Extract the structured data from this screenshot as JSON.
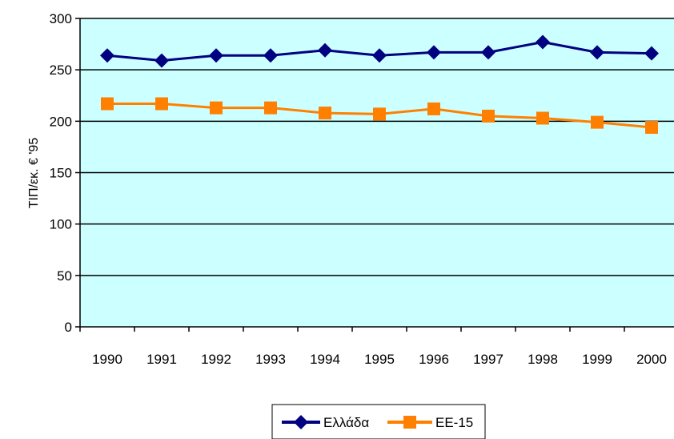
{
  "chart_data": {
    "type": "line",
    "title": "",
    "xlabel": "",
    "ylabel": "ΤΙΠ/εκ. € '95",
    "categories": [
      "1990",
      "1991",
      "1992",
      "1993",
      "1994",
      "1995",
      "1996",
      "1997",
      "1998",
      "1999",
      "2000"
    ],
    "y_ticks": [
      "0",
      "50",
      "100",
      "150",
      "200",
      "250",
      "300"
    ],
    "ylim": [
      0,
      300
    ],
    "grid": true,
    "legend_position": "bottom",
    "plot_background": "#ccffff",
    "series": [
      {
        "name": "Ελλάδα",
        "color": "#000080",
        "marker": "diamond",
        "values": [
          264,
          259,
          264,
          264,
          269,
          264,
          267,
          267,
          277,
          267,
          266
        ]
      },
      {
        "name": "ΕΕ-15",
        "color": "#ff8000",
        "marker": "square",
        "values": [
          217,
          217,
          213,
          213,
          208,
          207,
          212,
          205,
          203,
          199,
          194
        ]
      }
    ]
  }
}
